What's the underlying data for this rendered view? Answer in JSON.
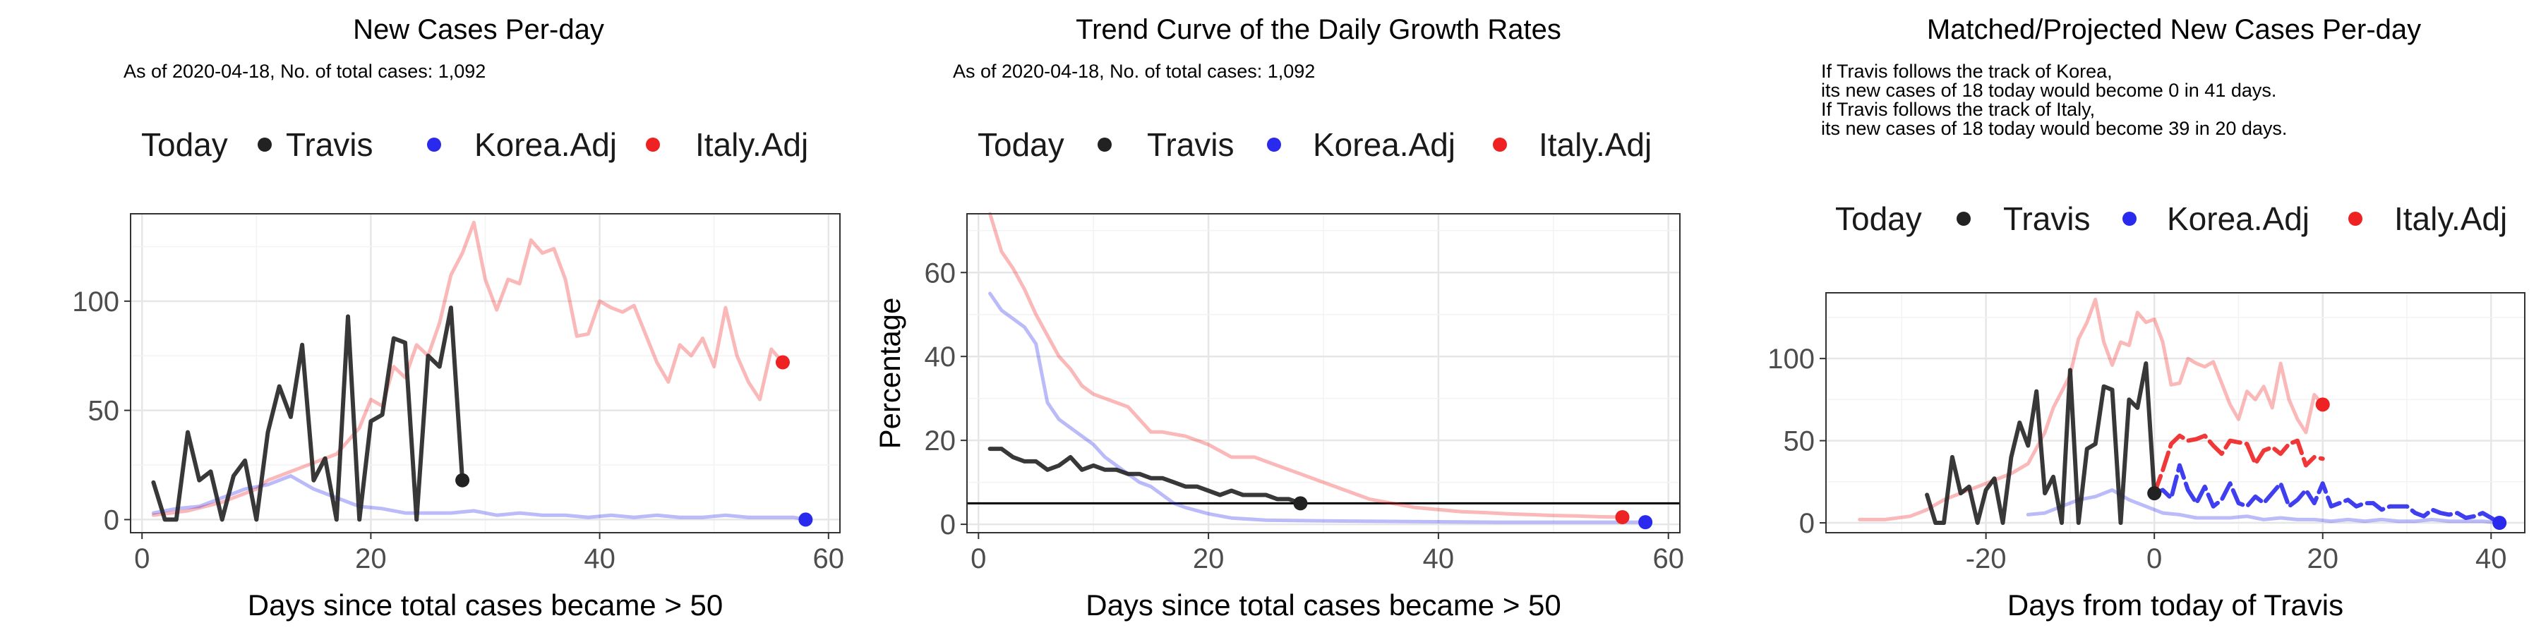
{
  "legend": {
    "title": "Today",
    "items": [
      {
        "name": "Travis",
        "color": "#222222"
      },
      {
        "name": "Korea.Adj",
        "color": "#2a2aee"
      },
      {
        "name": "Italy.Adj",
        "color": "#ee2222"
      }
    ]
  },
  "chart_data": [
    {
      "type": "line",
      "title": "New Cases Per-day",
      "subtitle_lines": [
        "As of 2020-04-18, No. of total cases: 1,092"
      ],
      "xlabel": "Days since total cases became > 50",
      "ylabel": "",
      "xlim": [
        -1,
        61
      ],
      "ylim": [
        -6,
        140
      ],
      "xticks": [
        0,
        20,
        40,
        60
      ],
      "yticks": [
        0,
        50,
        100
      ],
      "grid": true,
      "legend_position": "top",
      "series": [
        {
          "name": "Italy.Adj",
          "color": "#ee2222",
          "faded": true,
          "x": [
            1,
            4,
            7,
            10,
            11,
            13,
            15,
            17,
            18,
            19,
            20,
            21,
            22,
            23,
            24,
            25,
            26,
            27,
            28,
            29,
            30,
            31,
            32,
            33,
            34,
            35,
            36,
            37,
            38,
            39,
            40,
            41,
            42,
            43,
            44,
            45,
            46,
            47,
            48,
            49,
            50,
            51,
            52,
            53,
            54,
            55,
            56
          ],
          "y": [
            2,
            4,
            8,
            14,
            18,
            22,
            26,
            30,
            36,
            42,
            55,
            52,
            70,
            65,
            80,
            75,
            90,
            112,
            122,
            136,
            110,
            96,
            110,
            108,
            128,
            122,
            124,
            110,
            84,
            85,
            100,
            97,
            95,
            98,
            85,
            72,
            63,
            80,
            75,
            83,
            70,
            97,
            75,
            63,
            55,
            78,
            72
          ]
        },
        {
          "name": "Korea.Adj",
          "color": "#2a2aee",
          "faded": true,
          "x": [
            1,
            3,
            5,
            7,
            9,
            11,
            13,
            15,
            17,
            19,
            21,
            23,
            25,
            27,
            29,
            31,
            33,
            35,
            37,
            39,
            41,
            43,
            45,
            47,
            49,
            51,
            53,
            55,
            57,
            58
          ],
          "y": [
            3,
            5,
            6,
            10,
            14,
            16,
            20,
            14,
            10,
            6,
            5,
            3,
            3,
            3,
            4,
            2,
            3,
            2,
            2,
            1,
            2,
            1,
            2,
            1,
            1,
            2,
            1,
            1,
            1,
            0
          ]
        },
        {
          "name": "Travis",
          "color": "#222222",
          "faded": false,
          "x": [
            1,
            2,
            3,
            4,
            5,
            6,
            7,
            8,
            9,
            10,
            11,
            12,
            13,
            14,
            15,
            16,
            17,
            18,
            19,
            20,
            21,
            22,
            23,
            24,
            25,
            26,
            27,
            28
          ],
          "y": [
            17,
            0,
            0,
            40,
            18,
            22,
            0,
            20,
            27,
            0,
            40,
            61,
            47,
            80,
            18,
            28,
            0,
            93,
            0,
            45,
            48,
            83,
            81,
            0,
            75,
            70,
            97,
            18
          ]
        }
      ],
      "today_points": [
        {
          "series": "Travis",
          "x": 28,
          "y": 18
        },
        {
          "series": "Korea.Adj",
          "x": 58,
          "y": 0
        },
        {
          "series": "Italy.Adj",
          "x": 56,
          "y": 72
        }
      ]
    },
    {
      "type": "line",
      "title": "Trend Curve of the Daily Growth Rates",
      "subtitle_lines": [
        "As of 2020-04-18, No. of total cases: 1,092"
      ],
      "xlabel": "Days since total cases became > 50",
      "ylabel": "Percentage",
      "xlim": [
        -1,
        61
      ],
      "ylim": [
        -2,
        74
      ],
      "xticks": [
        0,
        20,
        40,
        60
      ],
      "yticks": [
        0,
        20,
        40,
        60
      ],
      "grid": true,
      "legend_position": "top",
      "hline": 5,
      "series": [
        {
          "name": "Italy.Adj",
          "color": "#ee2222",
          "faded": true,
          "x": [
            1,
            2,
            3,
            4,
            5,
            6,
            7,
            8,
            9,
            10,
            11,
            12,
            13,
            14,
            15,
            16,
            18,
            20,
            22,
            24,
            26,
            28,
            30,
            32,
            34,
            36,
            38,
            40,
            42,
            44,
            46,
            48,
            50,
            52,
            54,
            56
          ],
          "y": [
            74,
            65,
            61,
            56,
            50,
            45,
            40,
            37,
            33,
            31,
            30,
            29,
            28,
            25,
            22,
            22,
            21,
            19,
            16,
            16,
            14,
            12,
            10,
            8,
            6,
            5,
            4,
            3.5,
            3,
            2.8,
            2.5,
            2.3,
            2.1,
            2,
            1.8,
            1.7
          ]
        },
        {
          "name": "Korea.Adj",
          "color": "#2a2aee",
          "faded": true,
          "x": [
            1,
            2,
            3,
            4,
            5,
            6,
            7,
            8,
            9,
            10,
            11,
            12,
            13,
            14,
            15,
            16,
            17,
            18,
            20,
            22,
            25,
            30,
            35,
            40,
            45,
            50,
            55,
            58
          ],
          "y": [
            55,
            51,
            49,
            47,
            43,
            29,
            25,
            23,
            21,
            19,
            16,
            14,
            12,
            10,
            9,
            7,
            5,
            4,
            2.5,
            1.5,
            1,
            0.8,
            0.7,
            0.6,
            0.5,
            0.5,
            0.5,
            0.5
          ]
        },
        {
          "name": "Travis",
          "color": "#222222",
          "faded": false,
          "x": [
            1,
            2,
            3,
            4,
            5,
            6,
            7,
            8,
            9,
            10,
            11,
            12,
            13,
            14,
            15,
            16,
            17,
            18,
            19,
            20,
            21,
            22,
            23,
            24,
            25,
            26,
            27,
            28
          ],
          "y": [
            18,
            18,
            16,
            15,
            15,
            13,
            14,
            16,
            13,
            14,
            13,
            13,
            12,
            12,
            11,
            11,
            10,
            9,
            9,
            8,
            7,
            8,
            7,
            7,
            7,
            6,
            6,
            5
          ]
        }
      ],
      "today_points": [
        {
          "series": "Travis",
          "x": 28,
          "y": 5
        },
        {
          "series": "Korea.Adj",
          "x": 58,
          "y": 0.5
        },
        {
          "series": "Italy.Adj",
          "x": 56,
          "y": 1.7
        }
      ]
    },
    {
      "type": "line",
      "title": "Matched/Projected New Cases Per-day",
      "subtitle_lines": [
        "If Travis follows the track of Korea,",
        "its new cases of 18 today would become 0 in 41 days.",
        "If Travis follows the track of Italy,",
        "its new cases of 18 today would become 39 in 20 days."
      ],
      "xlabel": "Days from today of Travis",
      "ylabel": "",
      "xlim": [
        -39,
        44
      ],
      "ylim": [
        -6,
        140
      ],
      "xticks": [
        -20,
        0,
        20,
        40
      ],
      "yticks": [
        0,
        50,
        100
      ],
      "grid": true,
      "legend_position": "top",
      "series": [
        {
          "name": "Italy.Adj",
          "color": "#ee2222",
          "faded": true,
          "x": [
            -35,
            -32,
            -29,
            -27,
            -25,
            -23,
            -21,
            -19,
            -17,
            -15,
            -13,
            -12,
            -11,
            -10,
            -9,
            -8,
            -7,
            -6,
            -5,
            -4,
            -3,
            -2,
            -1,
            0,
            1,
            2,
            3,
            4,
            5,
            6,
            7,
            8,
            9,
            10,
            11,
            12,
            13,
            14,
            15,
            16,
            17,
            18,
            19,
            20
          ],
          "y": [
            2,
            2,
            4,
            8,
            14,
            18,
            22,
            26,
            30,
            36,
            55,
            70,
            80,
            90,
            112,
            122,
            136,
            110,
            96,
            110,
            108,
            128,
            122,
            124,
            110,
            84,
            85,
            100,
            97,
            95,
            98,
            85,
            72,
            63,
            80,
            75,
            83,
            70,
            97,
            75,
            63,
            55,
            78,
            72
          ]
        },
        {
          "name": "Korea.Adj",
          "color": "#2a2aee",
          "faded": true,
          "x": [
            -15,
            -13,
            -11,
            -9,
            -7,
            -5,
            -3,
            -1,
            1,
            3,
            5,
            7,
            9,
            11,
            13,
            15,
            17,
            19,
            21,
            23,
            25,
            27,
            29,
            31,
            33,
            35,
            37,
            39,
            41
          ],
          "y": [
            5,
            6,
            10,
            14,
            16,
            20,
            14,
            10,
            6,
            5,
            3,
            3,
            3,
            4,
            2,
            3,
            2,
            2,
            1,
            2,
            1,
            2,
            1,
            1,
            2,
            1,
            1,
            1,
            0
          ]
        },
        {
          "name": "Italy.Adj",
          "color": "#ee2222",
          "faded": false,
          "dashed": true,
          "x": [
            0,
            1,
            2,
            3,
            4,
            5,
            6,
            7,
            8,
            9,
            10,
            11,
            12,
            13,
            14,
            15,
            16,
            17,
            18,
            19,
            20
          ],
          "y": [
            18,
            32,
            48,
            53,
            50,
            51,
            53,
            47,
            42,
            50,
            49,
            48,
            36,
            44,
            46,
            42,
            48,
            50,
            35,
            40,
            39
          ]
        },
        {
          "name": "Korea.Adj",
          "color": "#2a2aee",
          "faded": false,
          "dashed": true,
          "x": [
            0,
            1,
            2,
            3,
            4,
            5,
            6,
            7,
            8,
            9,
            10,
            11,
            12,
            13,
            14,
            15,
            16,
            17,
            18,
            19,
            20,
            21,
            22,
            23,
            24,
            25,
            26,
            27,
            28,
            29,
            30,
            31,
            32,
            33,
            34,
            35,
            36,
            37,
            38,
            39,
            40,
            41
          ],
          "y": [
            18,
            20,
            15,
            35,
            20,
            12,
            22,
            10,
            14,
            24,
            12,
            10,
            16,
            12,
            18,
            24,
            10,
            14,
            20,
            12,
            24,
            10,
            12,
            14,
            10,
            12,
            12,
            8,
            10,
            10,
            10,
            6,
            4,
            8,
            6,
            5,
            6,
            3,
            4,
            6,
            3,
            0
          ]
        },
        {
          "name": "Travis",
          "color": "#222222",
          "faded": false,
          "x": [
            -27,
            -26,
            -25,
            -24,
            -23,
            -22,
            -21,
            -20,
            -19,
            -18,
            -17,
            -16,
            -15,
            -14,
            -13,
            -12,
            -11,
            -10,
            -9,
            -8,
            -7,
            -6,
            -5,
            -4,
            -3,
            -2,
            -1,
            0
          ],
          "y": [
            17,
            0,
            0,
            40,
            18,
            22,
            0,
            20,
            27,
            0,
            40,
            61,
            47,
            80,
            18,
            28,
            0,
            93,
            0,
            45,
            48,
            83,
            81,
            0,
            75,
            70,
            97,
            18
          ]
        }
      ],
      "today_points": [
        {
          "series": "Travis",
          "x": 0,
          "y": 18
        },
        {
          "series": "Korea.Adj",
          "x": 41,
          "y": 0
        },
        {
          "series": "Italy.Adj",
          "x": 20,
          "y": 72
        }
      ]
    }
  ]
}
